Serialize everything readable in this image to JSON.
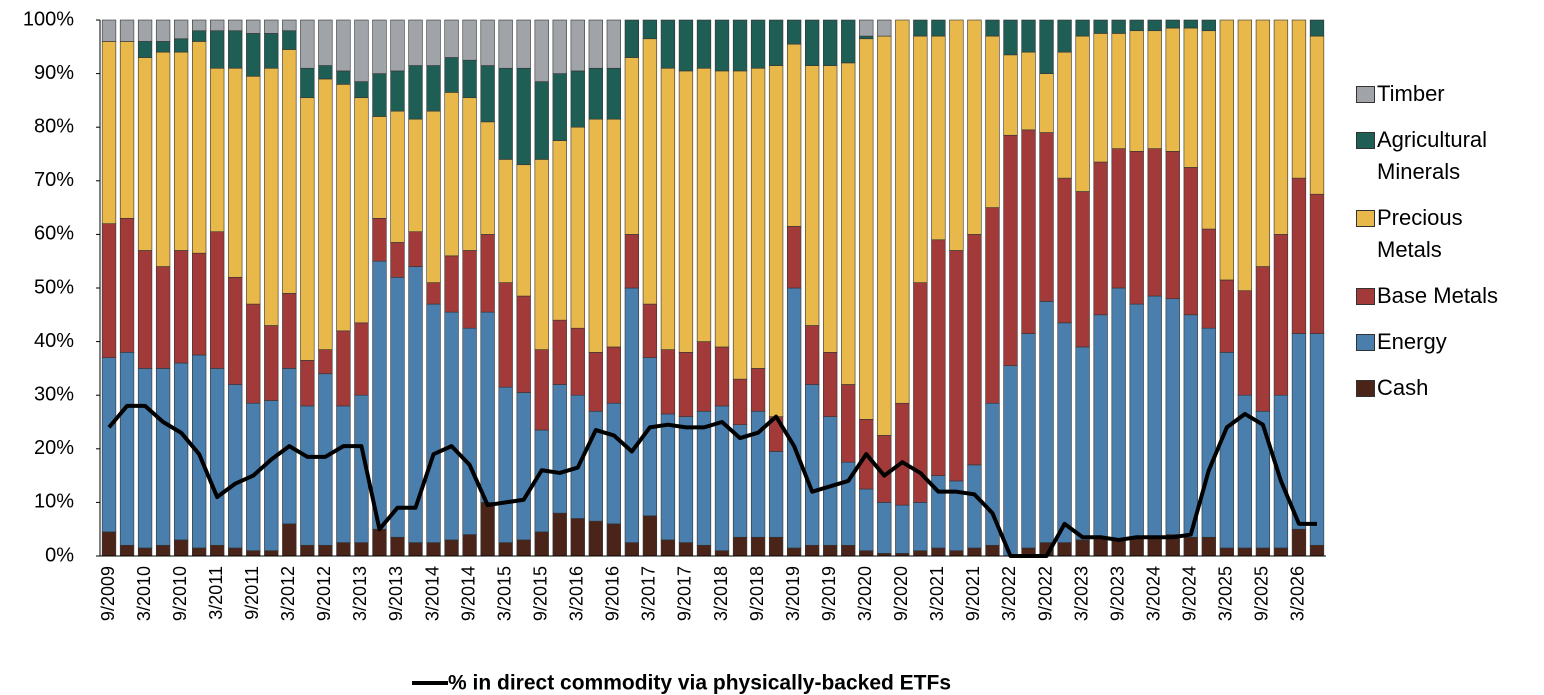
{
  "chart_data": {
    "type": "bar",
    "stacked": true,
    "categories": [
      "9/2009",
      null,
      "3/2010",
      null,
      "9/2010",
      null,
      "3/2011",
      null,
      "9/2011",
      null,
      "3/2012",
      null,
      "9/2012",
      null,
      "3/2013",
      null,
      "9/2013",
      null,
      "3/2014",
      null,
      "9/2014",
      null,
      "3/2015",
      null,
      "9/2015",
      null,
      "3/2016",
      null,
      "9/2016",
      null,
      "3/2017",
      null,
      "9/2017",
      null,
      "3/2018",
      null,
      "9/2018",
      null,
      "3/2019",
      null,
      "9/2019",
      null,
      "3/2020",
      null,
      "9/2020",
      null,
      "3/2021",
      null,
      "9/2021",
      null,
      "3/2022",
      null,
      "9/2022",
      null,
      "3/2023",
      null,
      "9/2023",
      null,
      "3/2024",
      null,
      "9/2024",
      null,
      "3/2025",
      null,
      "9/2025",
      null,
      "3/2026",
      null
    ],
    "series": [
      {
        "name": "Cash",
        "color": "#4a2418",
        "values": [
          4.5,
          2,
          1.5,
          2,
          3,
          1.5,
          2,
          1.5,
          1,
          1,
          6,
          2,
          2,
          2.5,
          2.5,
          5,
          3.5,
          2.5,
          2.5,
          3,
          4,
          10,
          2.5,
          3,
          4.5,
          8,
          7,
          6.5,
          6,
          2.5,
          7.5,
          3,
          2.5,
          2,
          1,
          3.5,
          3.5,
          3.5,
          1.5,
          2,
          2,
          2,
          1,
          0.5,
          0.5,
          1,
          1.5,
          1,
          1.5,
          2,
          0,
          1.5,
          2.5,
          2.5,
          3,
          3.5,
          3,
          3.5,
          3.5,
          4,
          3.5,
          3.5,
          1.5,
          1.5,
          1.5,
          1.5,
          5,
          2
        ]
      },
      {
        "name": "Energy",
        "color": "#4a7ead",
        "values": [
          32.5,
          36,
          33.5,
          33,
          33,
          36,
          33,
          30.5,
          27.5,
          28,
          29,
          26,
          32,
          25.5,
          27.5,
          50,
          48.5,
          51.5,
          44.5,
          42.5,
          38.5,
          35.5,
          29,
          27.5,
          19,
          24,
          23,
          20.5,
          22.5,
          47.5,
          29.5,
          23.5,
          23.5,
          25,
          27,
          21,
          23.5,
          16,
          48.5,
          30,
          24,
          15.5,
          11.5,
          9.5,
          9,
          9,
          13.5,
          13,
          15.5,
          26.5,
          35.5,
          40,
          45,
          41,
          36,
          41.5,
          47,
          43.5,
          45,
          44,
          41.5,
          39,
          36.5,
          28.5,
          25.5,
          28.5,
          36.5,
          39.5
        ]
      },
      {
        "name": "Base Metals",
        "color": "#a33a3a",
        "values": [
          25,
          25,
          22,
          19,
          21,
          19,
          25.5,
          20,
          18.5,
          14,
          14,
          8.5,
          4.5,
          14,
          13.5,
          8,
          6.5,
          6.5,
          4,
          10.5,
          14.5,
          14.5,
          19.5,
          18,
          15,
          12,
          12.5,
          11,
          10.5,
          10,
          10,
          12,
          12,
          13,
          11,
          8.5,
          8,
          6.5,
          11.5,
          11,
          12,
          14.5,
          13,
          12.5,
          19,
          41,
          44,
          43,
          43,
          36.5,
          43,
          38,
          31.5,
          27,
          29,
          28.5,
          26,
          28.5,
          27.5,
          27.5,
          27.5,
          18.5,
          13.5,
          19.5,
          27,
          30,
          29,
          26
        ]
      },
      {
        "name": "Precious Metals",
        "color": "#e8b84a",
        "values": [
          34,
          33,
          36,
          40,
          37,
          39.5,
          30.5,
          39,
          42.5,
          48,
          45.5,
          49,
          50.5,
          46,
          42,
          19,
          24.5,
          21,
          32,
          30.5,
          28.5,
          21,
          23,
          24.5,
          35.5,
          33.5,
          37.5,
          43.5,
          42.5,
          33,
          49.5,
          52.5,
          52.5,
          51,
          51.5,
          57.5,
          56,
          65.5,
          34,
          48.5,
          53.5,
          60,
          71,
          74.5,
          71.5,
          46,
          38,
          43,
          40,
          32,
          15,
          14.5,
          11,
          23.5,
          29,
          24,
          21.5,
          22.5,
          22,
          23,
          26,
          37,
          48.5,
          50.5,
          46,
          40,
          29.5,
          29.5
        ]
      },
      {
        "name": "Agricultural Minerals",
        "color": "#1e5e55",
        "values": [
          0,
          0,
          3,
          2,
          2.5,
          2,
          7,
          7,
          8,
          6.5,
          3.5,
          5.5,
          2.5,
          2.5,
          3,
          8,
          7.5,
          10,
          8.5,
          6.5,
          7,
          10.5,
          17,
          18,
          14.5,
          12.5,
          10.5,
          9.5,
          9.5,
          7,
          3.5,
          9,
          9.5,
          9,
          9.5,
          9.5,
          9,
          8.5,
          4.5,
          8.5,
          8.5,
          8,
          0.5,
          0,
          0,
          3,
          3,
          0,
          0,
          3,
          6.5,
          6,
          10,
          6,
          3,
          2.5,
          2.5,
          2,
          2,
          1.5,
          1.5,
          2,
          0,
          0,
          0,
          0,
          0,
          3
        ]
      },
      {
        "name": "Timber",
        "color": "#a0a4a8",
        "values": [
          4,
          4,
          4,
          4,
          3.5,
          2,
          2,
          2,
          2.5,
          2.5,
          2,
          9,
          8.5,
          9.5,
          11.5,
          10,
          9.5,
          8.5,
          8.5,
          7,
          7.5,
          8.5,
          9,
          9,
          11.5,
          10,
          9.5,
          9,
          9,
          0,
          0,
          0,
          0,
          0,
          0,
          0,
          0,
          0,
          0,
          0,
          0,
          0,
          3,
          3,
          0,
          0,
          0,
          0,
          0,
          0,
          0,
          0,
          0,
          0,
          0,
          0,
          0,
          0,
          0,
          0,
          0,
          0,
          0,
          0,
          0,
          0,
          0,
          0
        ]
      },
      {
        "name": "% in direct commodity via physically-backed ETFs",
        "type": "line",
        "color": "#000000",
        "values": [
          24,
          28,
          28,
          25,
          23,
          19,
          11,
          13.5,
          15,
          18,
          20.5,
          18.5,
          18.5,
          20.5,
          20.5,
          5,
          9,
          9,
          19,
          20.5,
          17,
          9.5,
          10,
          10.5,
          16,
          15.5,
          16.5,
          23.5,
          22.5,
          19.5,
          24,
          24.5,
          24,
          24,
          25,
          22,
          23,
          26,
          20.5,
          12,
          13,
          14,
          19,
          15,
          17.5,
          15.5,
          12,
          12,
          11.5,
          8,
          0,
          0,
          0,
          6,
          3.5,
          3.5,
          3,
          3.5,
          3.5,
          3.5,
          4,
          16,
          24,
          26.5,
          24.5,
          14,
          6,
          6
        ]
      }
    ],
    "ylim": [
      0,
      100
    ],
    "yticks": [
      {
        "value": 0,
        "label": "0%"
      },
      {
        "value": 10,
        "label": "10%"
      },
      {
        "value": 20,
        "label": "20%"
      },
      {
        "value": 30,
        "label": "30%"
      },
      {
        "value": 40,
        "label": "40%"
      },
      {
        "value": 50,
        "label": "50%"
      },
      {
        "value": 60,
        "label": "60%"
      },
      {
        "value": 70,
        "label": "70%"
      },
      {
        "value": 80,
        "label": "80%"
      },
      {
        "value": 90,
        "label": "90%"
      },
      {
        "value": 100,
        "label": "100%"
      }
    ],
    "grid": false
  }
}
